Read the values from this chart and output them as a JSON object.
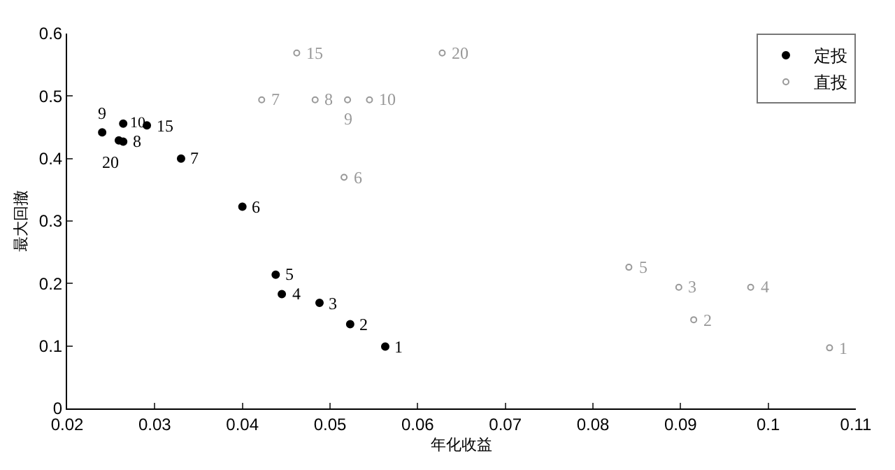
{
  "chart_data": {
    "type": "scatter",
    "xlabel": "年化收益",
    "ylabel": "最大回撤",
    "xlim": [
      0.02,
      0.11
    ],
    "ylim": [
      0,
      0.6
    ],
    "xticks": [
      0.02,
      0.03,
      0.04,
      0.05,
      0.06,
      0.07,
      0.08,
      0.09,
      {
        "value": 0.1,
        "label": "0.1"
      },
      0.11
    ],
    "yticks": [
      0,
      {
        "value": 0.1,
        "label": "0.1"
      },
      {
        "value": 0.2,
        "label": "0.2"
      },
      {
        "value": 0.3,
        "label": "0.3"
      },
      {
        "value": 0.4,
        "label": "0.4"
      },
      {
        "value": 0.5,
        "label": "0.5"
      },
      {
        "value": 0.6,
        "label": "0.6"
      }
    ],
    "grid": false,
    "legend": "top right",
    "marker": "circle",
    "series": [
      {
        "name": "定投",
        "color": "#000000",
        "x": [
          0.0563,
          0.0523,
          0.0488,
          0.0445,
          0.0438,
          0.04,
          0.033,
          0.0264,
          0.024,
          0.0264,
          0.0291,
          0.0259
        ],
        "values": [
          0.099,
          0.135,
          0.169,
          0.183,
          0.214,
          0.323,
          0.4,
          0.427,
          0.442,
          0.456,
          0.453,
          0.429
        ]
      },
      {
        "name": "直投",
        "color": "#999999",
        "x": [
          0.107,
          0.0915,
          0.0898,
          0.098,
          0.0841,
          0.0516,
          0.0422,
          0.0483,
          0.052,
          0.0545,
          0.0462,
          0.0628
        ],
        "values": [
          0.097,
          0.142,
          0.194,
          0.194,
          0.226,
          0.37,
          0.494,
          0.494,
          0.494,
          0.494,
          0.569,
          0.569
        ]
      }
    ],
    "annotations": [
      {
        "text": "1",
        "x": 0.0563,
        "y": 0.099
      },
      {
        "text": "2",
        "x": 0.0523,
        "y": 0.135
      },
      {
        "text": "3",
        "x": 0.0488,
        "y": 0.169
      },
      {
        "text": "4",
        "x": 0.0445,
        "y": 0.183
      },
      {
        "text": "5",
        "x": 0.0438,
        "y": 0.214
      },
      {
        "text": "6",
        "x": 0.04,
        "y": 0.323
      },
      {
        "text": "7",
        "x": 0.033,
        "y": 0.4
      },
      {
        "text": "8",
        "x": 0.0264,
        "y": 0.427
      },
      {
        "text": "9",
        "x": 0.024,
        "y": 0.442
      },
      {
        "text": "10",
        "x": 0.0264,
        "y": 0.456
      },
      {
        "text": "15",
        "x": 0.0291,
        "y": 0.453
      },
      {
        "text": "20",
        "x": 0.0259,
        "y": 0.429
      },
      {
        "text": "1",
        "x": 0.107,
        "y": 0.097
      },
      {
        "text": "2",
        "x": 0.0915,
        "y": 0.142
      },
      {
        "text": "3",
        "x": 0.0898,
        "y": 0.194
      },
      {
        "text": "4",
        "x": 0.098,
        "y": 0.194
      },
      {
        "text": "5",
        "x": 0.0841,
        "y": 0.226
      },
      {
        "text": "6",
        "x": 0.0516,
        "y": 0.37
      },
      {
        "text": "7",
        "x": 0.0422,
        "y": 0.494
      },
      {
        "text": "8",
        "x": 0.0483,
        "y": 0.494
      },
      {
        "text": "9",
        "x": 0.052,
        "y": 0.494
      },
      {
        "text": "10",
        "x": 0.0545,
        "y": 0.494
      },
      {
        "text": "15",
        "x": 0.0462,
        "y": 0.569
      },
      {
        "text": "20",
        "x": 0.0628,
        "y": 0.569
      }
    ]
  }
}
